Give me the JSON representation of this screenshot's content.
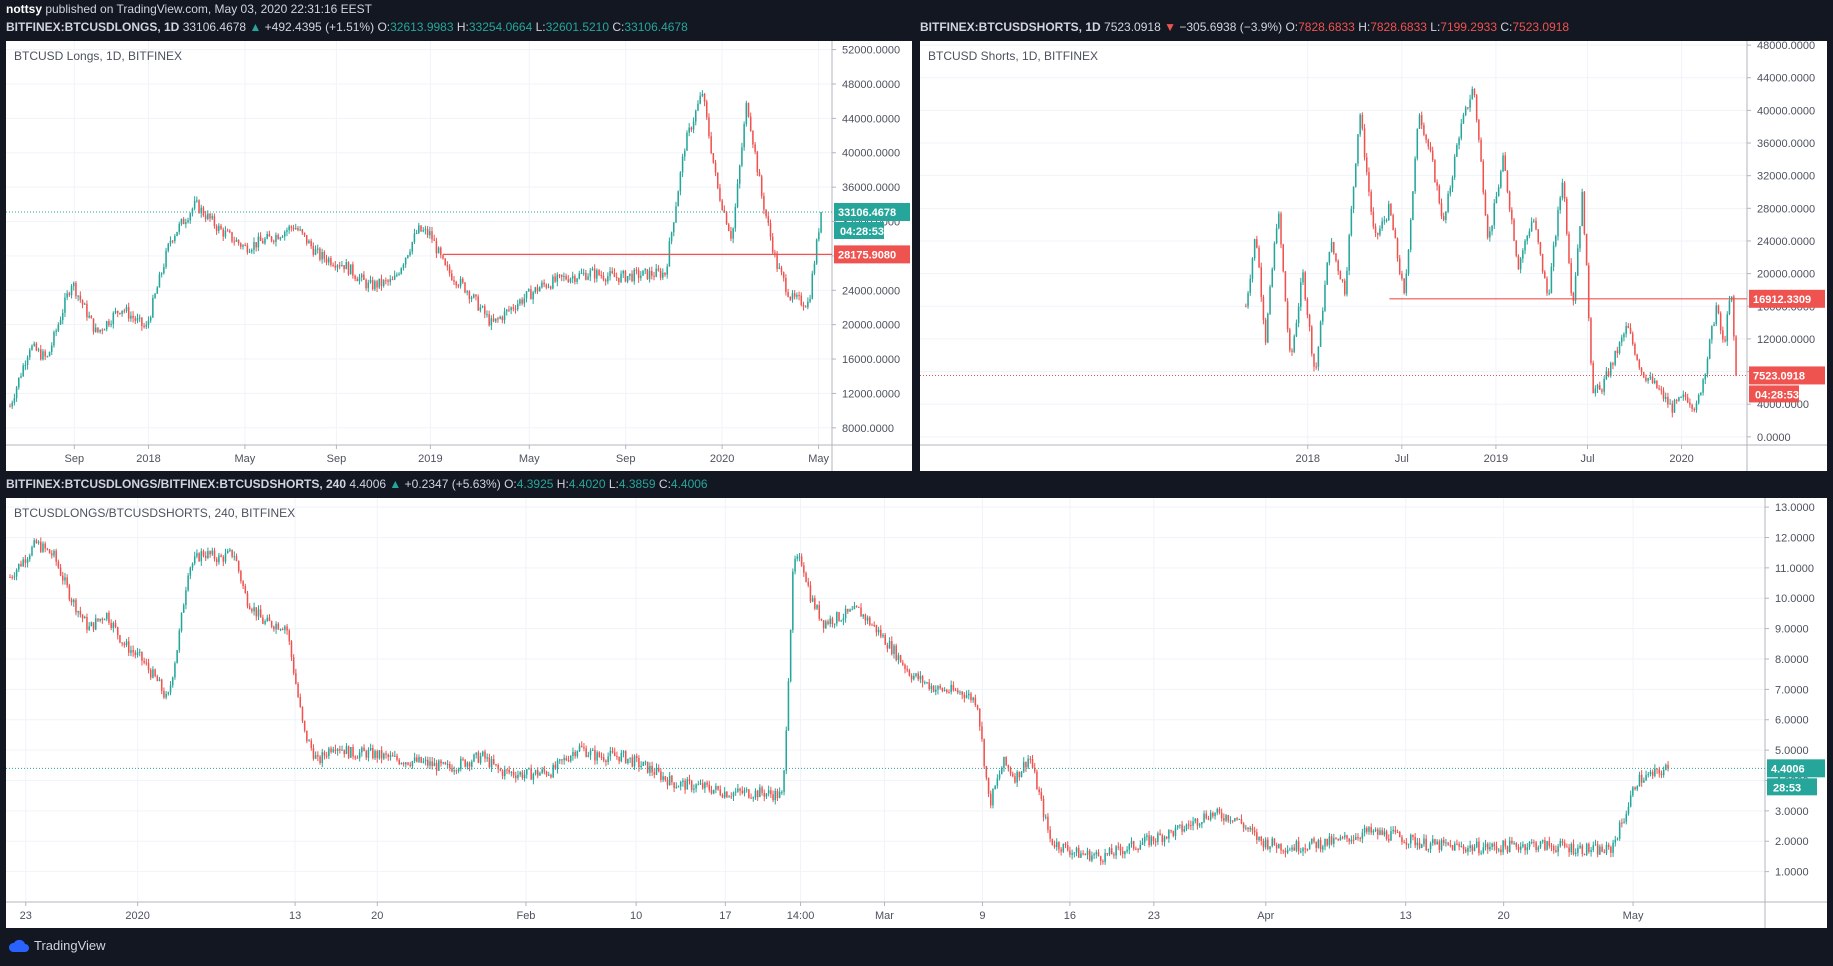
{
  "publish_line": {
    "author": "nottsy",
    "text": " published on TradingView.com, May 03, 2020 22:31:16 EEST"
  },
  "colors": {
    "background": "#131722",
    "up": "#26a69a",
    "down": "#ef5350",
    "panel_bg": "#ffffff",
    "grid": "#f0f3fa"
  },
  "icons": {
    "brand_logo": "tradingview-cloud-icon"
  },
  "footer": {
    "brand": "TradingView"
  },
  "panels": [
    {
      "symbol": "BITFINEX:BTCUSDLONGS, 1D",
      "last": "33106.4678",
      "change": "+492.4395 (+1.51%)",
      "direction": "up",
      "o": "32613.9983",
      "h": "33254.0664",
      "l": "32601.5210",
      "c": "33106.4678",
      "title": "BTCUSD Longs, 1D, BITFINEX"
    },
    {
      "symbol": "BITFINEX:BTCUSDSHORTS, 1D",
      "last": "7523.0918",
      "change": "−305.6938 (−3.9%)",
      "direction": "down",
      "o": "7828.6833",
      "h": "7828.6833",
      "l": "7199.2933",
      "c": "7523.0918",
      "title": "BTCUSD Shorts, 1D, BITFINEX"
    },
    {
      "symbol": "BITFINEX:BTCUSDLONGS/BITFINEX:BTCUSDSHORTS, 240",
      "last": "4.4006",
      "change": "+0.2347 (+5.63%)",
      "direction": "up",
      "o": "4.3925",
      "h": "4.4020",
      "l": "4.3859",
      "c": "4.4006",
      "title": "BTCUSDLONGS/BTCUSDSHORTS, 240, BITFINEX"
    }
  ],
  "chart_data": [
    {
      "type": "candlestick",
      "title": "BTCUSD Longs, 1D, BITFINEX",
      "ylim": [
        6000,
        53000
      ],
      "y_ticks": [
        8000,
        12000,
        16000,
        20000,
        24000,
        28000,
        32000,
        36000,
        40000,
        44000,
        48000,
        52000
      ],
      "y_tick_labels": [
        "8000.0000",
        "12000.0000",
        "16000.0000",
        "20000.0000",
        "24000.0000",
        "28000.0000",
        "32000.0000",
        "36000.0000",
        "40000.0000",
        "44000.0000",
        "48000.0000",
        "52000.0000"
      ],
      "x_range": [
        0,
        33
      ],
      "x_ticks": [
        3,
        6,
        9,
        12,
        15,
        18,
        21,
        24,
        27,
        30,
        33
      ],
      "x_tick_labels": [
        "Sep",
        "2018",
        "May",
        "Sep",
        "2019",
        "May",
        "Sep",
        "2020",
        "May"
      ],
      "x_tick_positions": [
        2.6,
        5.6,
        9.5,
        13.2,
        17.0,
        21.0,
        24.9,
        28.8,
        32.7
      ],
      "path_x": [
        0,
        0.8,
        1.5,
        2.5,
        3.5,
        4.5,
        5.5,
        6.5,
        7.5,
        8.5,
        9.5,
        10.5,
        11.5,
        12.5,
        13.5,
        14.5,
        15.5,
        16.5,
        17.0,
        17.6,
        18.5,
        19.5,
        20.5,
        21.5,
        22.5,
        23.5,
        24.5,
        25.5,
        26.5,
        27.3,
        28.0,
        28.6,
        29.2,
        29.8,
        30.4,
        31.0,
        31.6,
        32.3,
        32.8
      ],
      "path_y": [
        10500,
        17500,
        16000,
        25000,
        19000,
        22000,
        19500,
        30000,
        34000,
        31000,
        29000,
        30000,
        31500,
        28000,
        27000,
        24500,
        25000,
        31000,
        30500,
        26500,
        24000,
        20000,
        22500,
        24500,
        25500,
        26000,
        25500,
        25800,
        26000,
        41000,
        47000,
        36000,
        30000,
        46000,
        35000,
        27000,
        23000,
        22500,
        33106
      ],
      "current_price": 33106.4678,
      "current_label": "33106.4678",
      "countdown": "04:28:53",
      "hline": {
        "value": 28175.908,
        "label": "28175.9080",
        "from_x": 17.5
      }
    },
    {
      "type": "candlestick",
      "title": "BTCUSD Shorts, 1D, BITFINEX",
      "ylim": [
        -1000,
        48500
      ],
      "y_ticks": [
        0,
        4000,
        8000,
        12000,
        16000,
        20000,
        24000,
        28000,
        32000,
        36000,
        40000,
        44000,
        48000
      ],
      "y_tick_labels": [
        "0.0000",
        "4000.0000",
        "8000.0000",
        "12000.0000",
        "16000.0000",
        "20000.0000",
        "24000.0000",
        "28000.0000",
        "32000.0000",
        "36000.0000",
        "40000.0000",
        "44000.0000",
        "48000.0000"
      ],
      "x_range": [
        0,
        33
      ],
      "x_tick_labels": [
        "2018",
        "Jul",
        "2019",
        "Jul",
        "2020"
      ],
      "x_tick_positions": [
        15.5,
        19.3,
        23.1,
        26.8,
        30.6
      ],
      "path_x": [
        13.0,
        13.4,
        13.8,
        14.3,
        14.8,
        15.3,
        15.8,
        16.4,
        17.0,
        17.6,
        18.2,
        18.8,
        19.4,
        20.0,
        20.5,
        21.0,
        21.6,
        22.2,
        22.8,
        23.4,
        24.0,
        24.6,
        25.2,
        25.8,
        26.2,
        26.6,
        26.8,
        27.0,
        27.3,
        27.8,
        28.4,
        29.0,
        29.6,
        30.2,
        30.8,
        31.2,
        31.6,
        32.0,
        32.3,
        32.6,
        32.8
      ],
      "path_y": [
        16000,
        25000,
        12000,
        28000,
        9000,
        20000,
        7500,
        24000,
        18000,
        40000,
        24000,
        28000,
        17000,
        40000,
        34000,
        26000,
        37000,
        43000,
        24000,
        34000,
        21000,
        27000,
        17000,
        32000,
        16000,
        30000,
        18000,
        6000,
        5500,
        9000,
        13500,
        8000,
        6000,
        3500,
        5000,
        3500,
        9000,
        16000,
        11000,
        18000,
        7523
      ],
      "current_price": 7523.0918,
      "current_label": "7523.0918",
      "countdown": "04:28:53",
      "hline": {
        "value": 16912.3309,
        "label": "16912.3309",
        "from_x": 18.8
      }
    },
    {
      "type": "candlestick",
      "title": "BTCUSDLONGS/BTCUSDSHORTS, 240, BITFINEX",
      "ylim": [
        0.0,
        13.3
      ],
      "y_ticks": [
        1,
        2,
        3,
        4,
        5,
        6,
        7,
        8,
        9,
        10,
        11,
        12,
        13
      ],
      "y_tick_labels": [
        "1.0000",
        "2.0000",
        "3.0000",
        "4.0000",
        "5.0000",
        "6.0000",
        "7.0000",
        "8.0000",
        "9.0000",
        "10.0000",
        "11.0000",
        "12.0000",
        "13.0000"
      ],
      "x_range": [
        0,
        100
      ],
      "x_tick_labels": [
        "23",
        "2020",
        "13",
        "20",
        "Feb",
        "10",
        "17",
        "14:00",
        "Mar",
        "9",
        "16",
        "23",
        "Apr",
        "13",
        "20",
        "May"
      ],
      "x_tick_positions": [
        0.9,
        7.3,
        16.3,
        21.0,
        29.5,
        35.8,
        40.9,
        45.2,
        50.0,
        55.6,
        60.6,
        65.4,
        71.8,
        79.8,
        85.4,
        92.8
      ],
      "path_x": [
        0,
        1.5,
        2.5,
        3.5,
        4.5,
        5.5,
        6.5,
        7.5,
        8.5,
        9.0,
        9.6,
        10.2,
        11.0,
        12.0,
        12.8,
        13.5,
        14.5,
        15.8,
        16.8,
        17.6,
        18.5,
        19.5,
        20.5,
        22.0,
        23.5,
        25.0,
        27.0,
        28.0,
        29.5,
        31.0,
        32.5,
        33.5,
        35.0,
        36.5,
        38.0,
        39.5,
        41.0,
        43.0,
        44.2,
        44.8,
        45.3,
        45.8,
        46.5,
        47.5,
        48.5,
        49.5,
        50.5,
        51.5,
        53.0,
        54.5,
        55.3,
        56.0,
        56.8,
        57.5,
        58.3,
        59.5,
        61.0,
        62.5,
        64.0,
        65.5,
        67.0,
        68.5,
        70.0,
        71.5,
        73.0,
        74.5,
        76.0,
        77.5,
        79.0,
        81.0,
        83.0,
        85.0,
        87.0,
        89.0,
        90.8,
        91.5,
        92.3,
        93.0,
        94.0,
        94.8
      ],
      "path_y": [
        10.7,
        11.8,
        11.4,
        10.0,
        9.0,
        9.5,
        8.5,
        8.0,
        7.2,
        6.6,
        8.5,
        11.0,
        11.5,
        11.3,
        11.5,
        10.0,
        9.2,
        9.1,
        5.6,
        4.6,
        5.2,
        4.9,
        4.9,
        4.7,
        4.6,
        4.4,
        4.8,
        4.3,
        4.2,
        4.3,
        5.1,
        4.8,
        4.8,
        4.4,
        3.9,
        3.8,
        3.6,
        3.6,
        3.5,
        11.2,
        11.2,
        10.0,
        9.2,
        9.4,
        9.6,
        9.0,
        8.3,
        7.5,
        7.0,
        6.9,
        6.6,
        3.2,
        4.6,
        4.1,
        4.8,
        2.0,
        1.6,
        1.5,
        1.8,
        2.1,
        2.4,
        2.9,
        2.8,
        2.0,
        1.8,
        1.9,
        2.0,
        2.3,
        2.2,
        1.9,
        1.8,
        1.8,
        1.9,
        1.8,
        1.7,
        1.7,
        2.8,
        4.0,
        4.2,
        4.4006
      ],
      "current_price": 4.4006,
      "current_label": "4.4006",
      "countdown": "28:53"
    }
  ]
}
